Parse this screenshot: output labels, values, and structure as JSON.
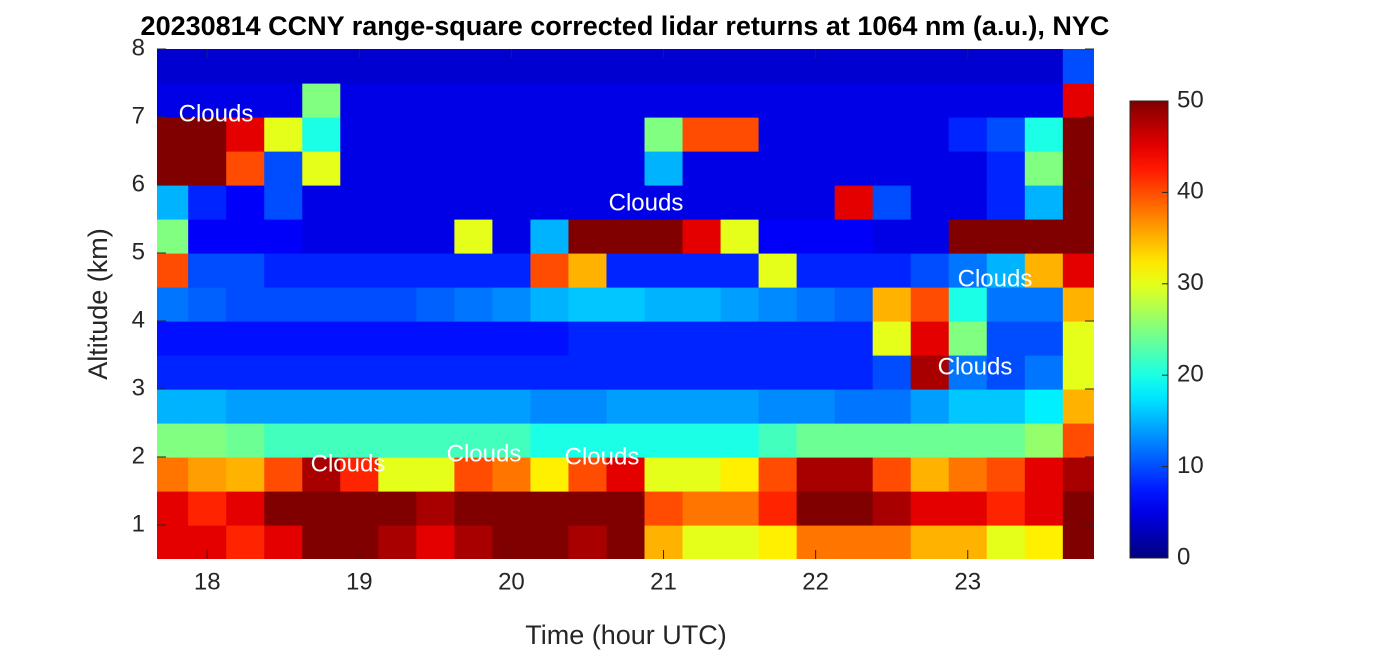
{
  "chart_data": {
    "type": "heatmap",
    "title": "20230814 CCNY range-square corrected lidar returns at 1064 nm (a.u.), NYC",
    "xlabel": "Time (hour UTC)",
    "ylabel": "Altitude (km)",
    "colormap": "jet",
    "x": [
      17.75,
      18,
      18.25,
      18.5,
      18.75,
      19,
      19.25,
      19.5,
      19.75,
      20,
      20.25,
      20.5,
      20.75,
      21,
      21.25,
      21.5,
      21.75,
      22,
      22.25,
      22.5,
      22.75,
      23,
      23.25,
      23.5,
      23.75
    ],
    "y": [
      0.75,
      1.25,
      1.75,
      2.25,
      2.75,
      3.25,
      3.75,
      4.25,
      4.75,
      5.25,
      5.75,
      6.25,
      6.75,
      7.25,
      7.75
    ],
    "z": [
      [
        45,
        45,
        42,
        45,
        50,
        50,
        48,
        45,
        48,
        50,
        50,
        48,
        50,
        35,
        30,
        30,
        32,
        38,
        38,
        38,
        35,
        35,
        30,
        32,
        50
      ],
      [
        45,
        42,
        45,
        50,
        50,
        50,
        50,
        48,
        50,
        50,
        50,
        50,
        50,
        40,
        38,
        38,
        42,
        50,
        50,
        48,
        45,
        45,
        42,
        45,
        50
      ],
      [
        38,
        36,
        35,
        40,
        48,
        42,
        30,
        30,
        40,
        38,
        32,
        40,
        45,
        30,
        30,
        32,
        40,
        48,
        48,
        40,
        35,
        38,
        40,
        45,
        48
      ],
      [
        25,
        25,
        24,
        22,
        22,
        22,
        22,
        22,
        22,
        22,
        20,
        20,
        20,
        20,
        20,
        20,
        22,
        24,
        24,
        24,
        24,
        24,
        24,
        26,
        40
      ],
      [
        15,
        15,
        14,
        14,
        14,
        14,
        14,
        14,
        14,
        14,
        13,
        13,
        14,
        14,
        14,
        14,
        13,
        13,
        12,
        12,
        14,
        16,
        16,
        18,
        35
      ],
      [
        8,
        8,
        8,
        8,
        8,
        8,
        8,
        8,
        8,
        8,
        8,
        8,
        8,
        8,
        8,
        8,
        8,
        8,
        8,
        10,
        48,
        12,
        10,
        12,
        30
      ],
      [
        7,
        7,
        7,
        7,
        7,
        7,
        7,
        7,
        7,
        7,
        7,
        8,
        8,
        8,
        8,
        8,
        8,
        8,
        8,
        30,
        45,
        25,
        10,
        10,
        30
      ],
      [
        12,
        11,
        10,
        10,
        10,
        10,
        10,
        11,
        12,
        13,
        15,
        16,
        16,
        15,
        15,
        14,
        13,
        12,
        11,
        35,
        40,
        20,
        12,
        12,
        35
      ],
      [
        40,
        10,
        10,
        8,
        8,
        8,
        8,
        8,
        8,
        8,
        40,
        35,
        8,
        8,
        8,
        8,
        30,
        8,
        8,
        8,
        10,
        12,
        15,
        35,
        45
      ],
      [
        25,
        6,
        6,
        6,
        5,
        5,
        5,
        5,
        30,
        5,
        15,
        50,
        50,
        50,
        45,
        30,
        6,
        6,
        6,
        5,
        5,
        50,
        50,
        50,
        50
      ],
      [
        15,
        8,
        6,
        10,
        5,
        5,
        5,
        5,
        5,
        5,
        5,
        5,
        5,
        5,
        5,
        5,
        5,
        5,
        45,
        10,
        5,
        5,
        8,
        15,
        50
      ],
      [
        50,
        50,
        40,
        10,
        30,
        5,
        5,
        5,
        5,
        5,
        5,
        5,
        5,
        15,
        5,
        5,
        5,
        5,
        5,
        5,
        5,
        5,
        8,
        25,
        50
      ],
      [
        50,
        50,
        45,
        30,
        20,
        5,
        5,
        5,
        5,
        5,
        5,
        5,
        5,
        25,
        40,
        40,
        5,
        5,
        5,
        5,
        5,
        8,
        10,
        20,
        50
      ],
      [
        5,
        5,
        5,
        5,
        25,
        5,
        5,
        5,
        5,
        5,
        5,
        5,
        5,
        5,
        5,
        5,
        5,
        5,
        5,
        5,
        5,
        5,
        5,
        5,
        45
      ],
      [
        4,
        4,
        4,
        4,
        4,
        4,
        4,
        4,
        4,
        4,
        4,
        4,
        4,
        4,
        4,
        4,
        4,
        4,
        4,
        4,
        4,
        4,
        4,
        4,
        10
      ]
    ],
    "xlim": [
      17.67,
      23.83
    ],
    "ylim": [
      0.5,
      8
    ],
    "xticks": [
      18,
      19,
      20,
      21,
      22,
      23
    ],
    "yticks": [
      1,
      2,
      3,
      4,
      5,
      6,
      7,
      8
    ],
    "clim": [
      0,
      50
    ],
    "cticks": [
      0,
      10,
      20,
      30,
      40,
      50
    ],
    "annotations": [
      "Clouds",
      "Clouds",
      "Clouds",
      "Clouds",
      "Clouds",
      "Clouds",
      "Clouds"
    ]
  }
}
